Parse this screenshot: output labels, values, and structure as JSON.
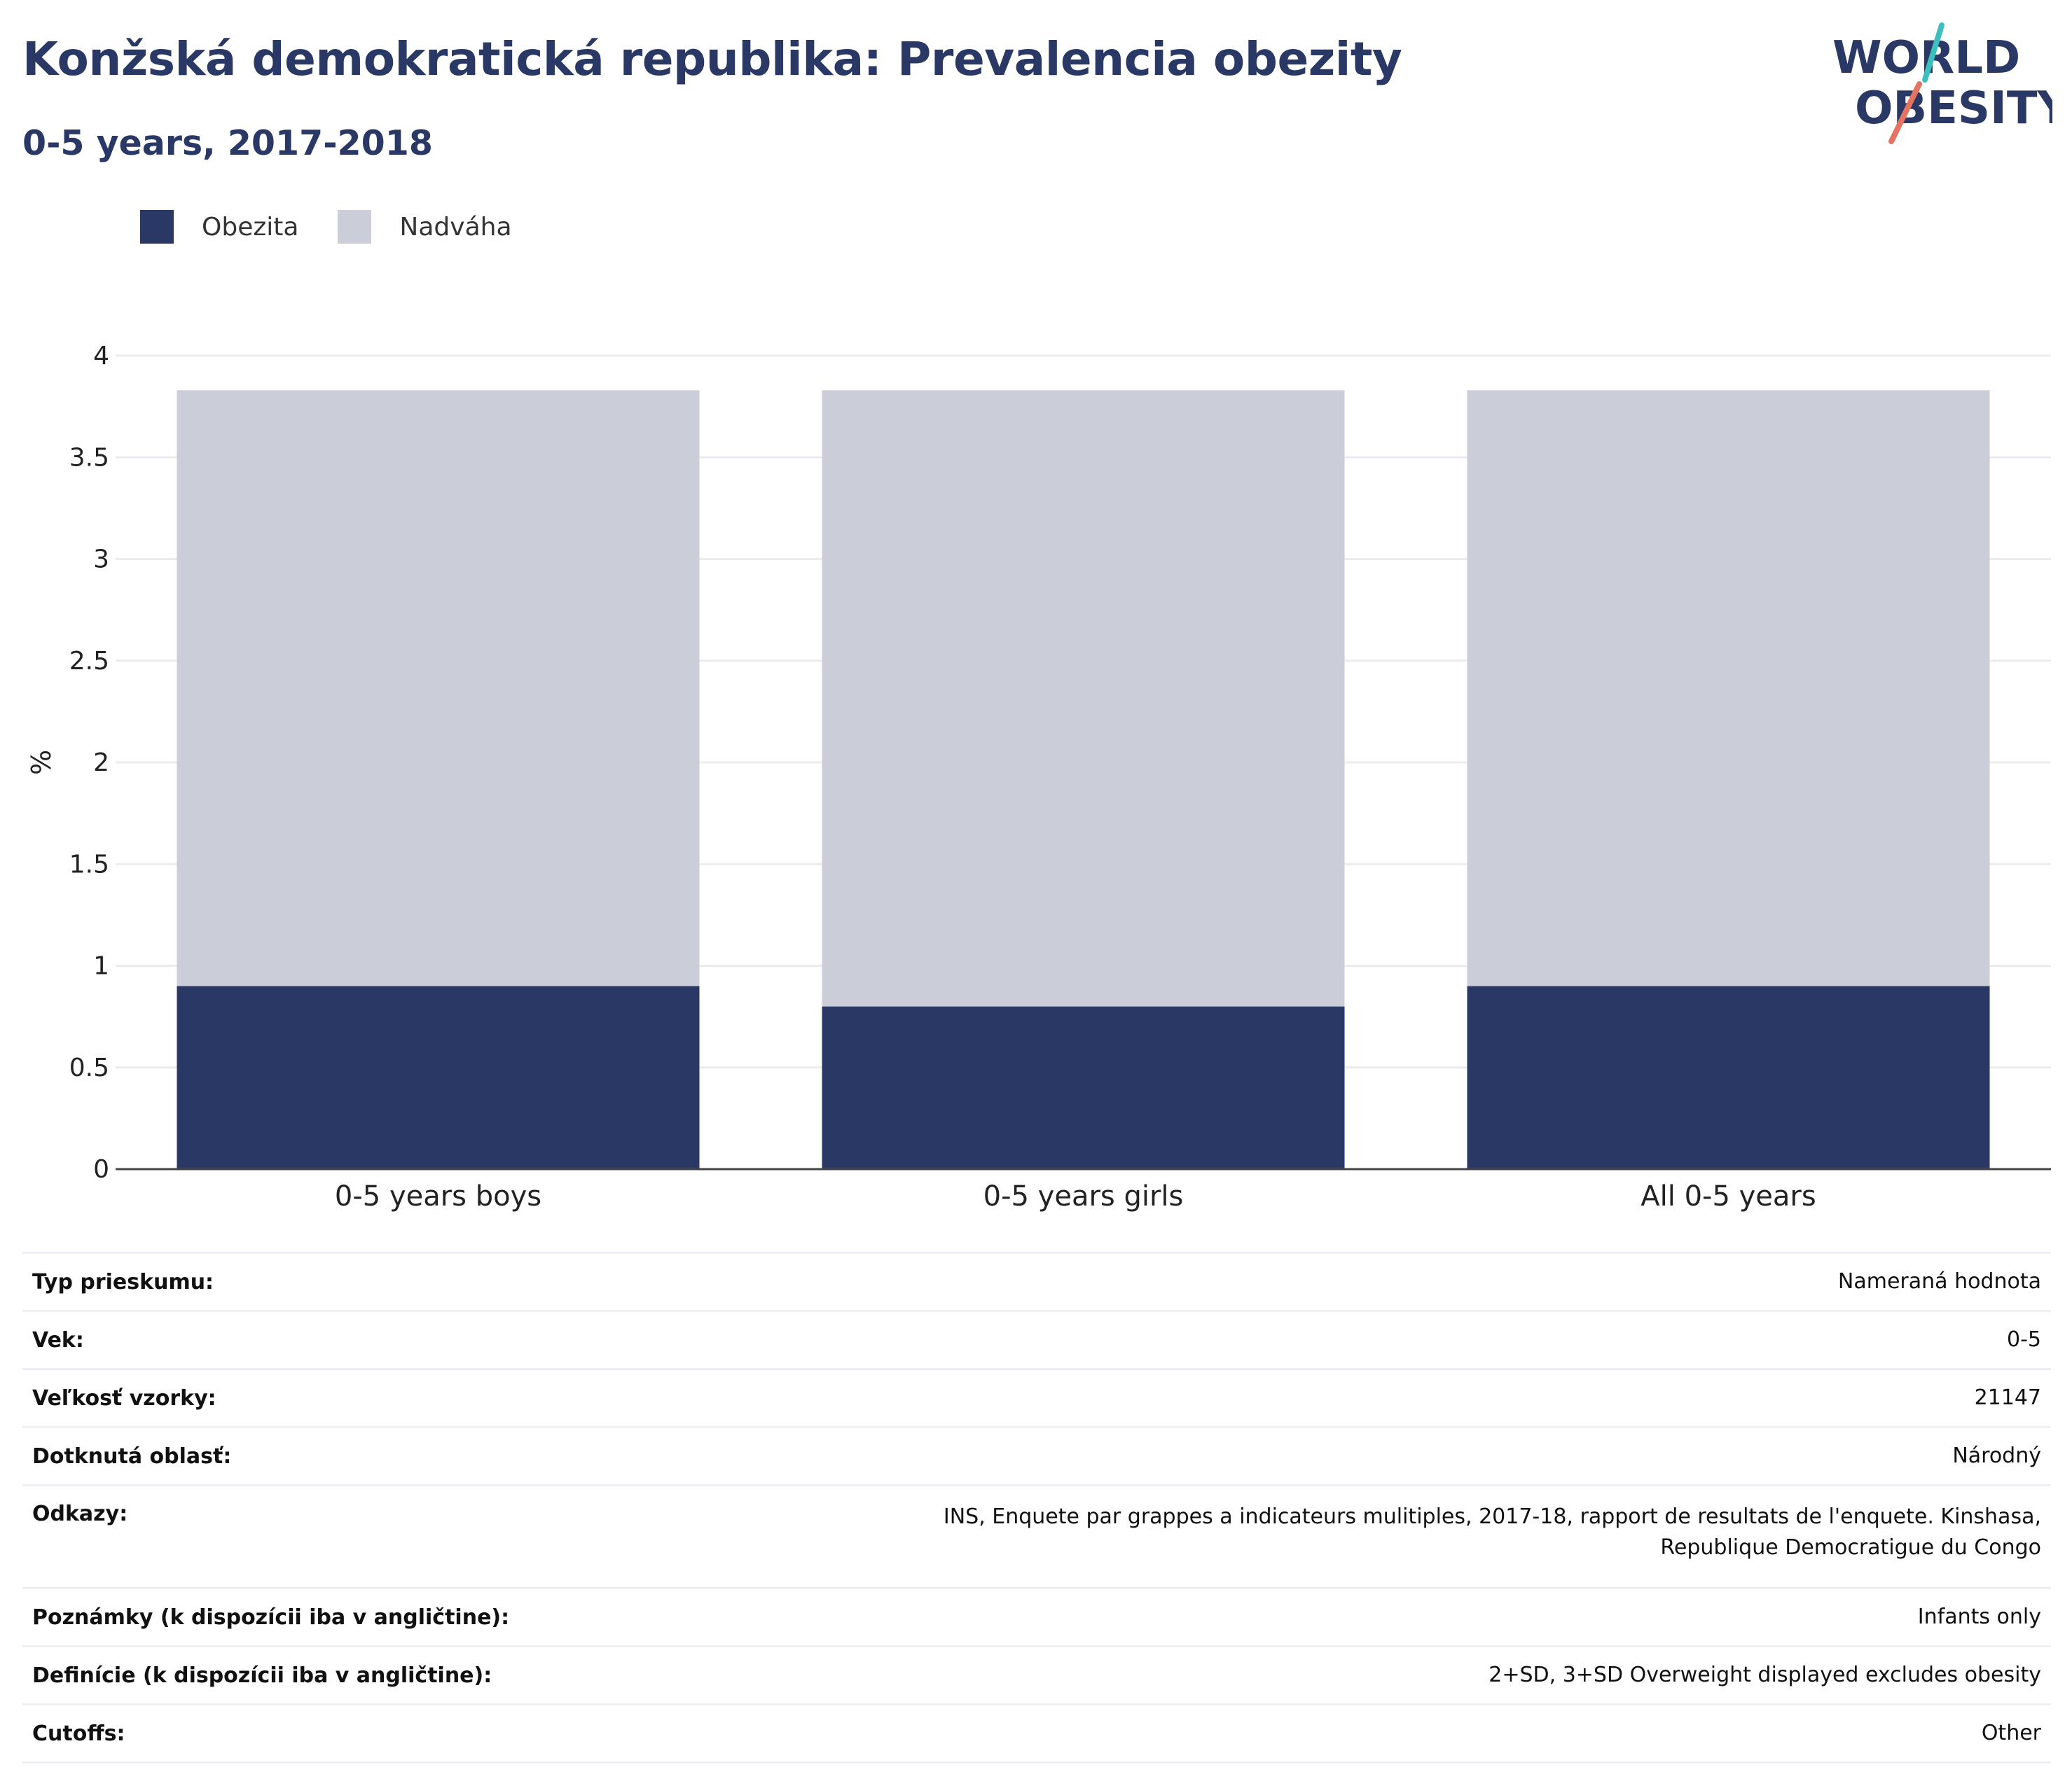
{
  "title": "Konžská demokratická republika: Prevalencia obezity",
  "subtitle": "0-5 years, 2017-2018",
  "logo": {
    "line1": "WORLD",
    "line2": "OBESITY"
  },
  "colors": {
    "obesity": "#2a3866",
    "overweight": "#cbcdd8",
    "text": "#2a3866",
    "accent_teal": "#3bbfbf",
    "accent_red": "#e5735f"
  },
  "legend": [
    {
      "label": "Obezita",
      "color": "#2a3866"
    },
    {
      "label": "Nadváha",
      "color": "#cbcdd8"
    }
  ],
  "chart_data": {
    "type": "bar",
    "stacked": true,
    "categories": [
      "0-5 years boys",
      "0-5 years girls",
      "All 0-5 years"
    ],
    "series": [
      {
        "name": "Obezita",
        "values": [
          0.9,
          0.8,
          0.9
        ]
      },
      {
        "name": "Nadváha",
        "values": [
          2.93,
          3.03,
          2.93
        ]
      }
    ],
    "totals": [
      3.83,
      3.83,
      3.83
    ],
    "ylabel": "%",
    "ylim": [
      0,
      4
    ],
    "yticks": [
      "0",
      "0.5",
      "1",
      "1.5",
      "2",
      "2.5",
      "3",
      "3.5",
      "4"
    ],
    "grid": true,
    "legend_position": "top-left"
  },
  "meta": [
    {
      "label": "Typ prieskumu:",
      "value": "Nameraná hodnota"
    },
    {
      "label": "Vek:",
      "value": "0-5"
    },
    {
      "label": "Veľkosť vzorky:",
      "value": "21147"
    },
    {
      "label": "Dotknutá oblasť:",
      "value": "Národný"
    },
    {
      "label": "Odkazy:",
      "value": "INS, Enquete par grappes a indicateurs mulitiples, 2017-18, rapport de resultats de l'enquete. Kinshasa, Republique Democratigue du Congo"
    },
    {
      "label": "Poznámky (k dispozícii iba v angličtine):",
      "value": "Infants only"
    },
    {
      "label": "Definície (k dispozícii iba v angličtine):",
      "value": "2+SD, 3+SD Overweight displayed excludes obesity"
    },
    {
      "label": "Cutoffs:",
      "value": "Other"
    }
  ]
}
